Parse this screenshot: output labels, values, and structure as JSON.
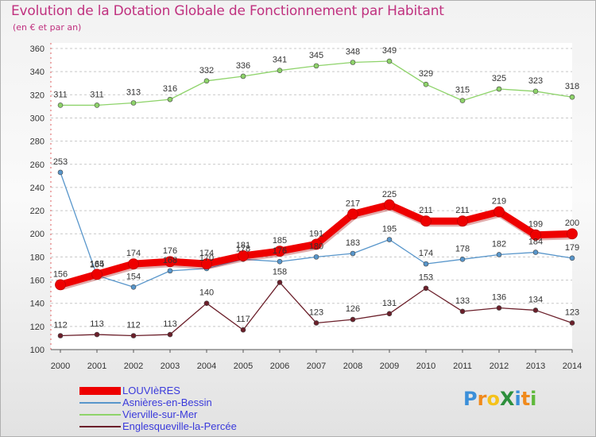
{
  "header": {
    "title": "Evolution de la Dotation Globale de Fonctionnement par Habitant",
    "subtitle": "(en € et par an)"
  },
  "logo": {
    "text": "ProXiti",
    "letter_colors": [
      "#3b8fd9",
      "#f08a1c",
      "#f5c21b",
      "#2d8f3c",
      "#3b8fd9",
      "#f08a1c",
      "#5fb93b"
    ]
  },
  "chart_data": {
    "type": "line",
    "x": [
      "2000",
      "2001",
      "2002",
      "2003",
      "2004",
      "2005",
      "2006",
      "2007",
      "2008",
      "2009",
      "2010",
      "2011",
      "2012",
      "2013",
      "2014"
    ],
    "y_ticks": [
      "100",
      "120",
      "140",
      "160",
      "180",
      "200",
      "220",
      "240",
      "260",
      "280",
      "300",
      "320",
      "340",
      "360"
    ],
    "ylim": [
      100,
      360
    ],
    "grid": "horizontal dashed",
    "legend": "bottom-left",
    "series": [
      {
        "name": "Englesqueville-la-Percée",
        "color": "#6b1f2a",
        "width": "thin",
        "values": [
          112,
          113,
          112,
          113,
          140,
          117,
          158,
          123,
          126,
          131,
          153,
          133,
          136,
          134,
          123
        ]
      },
      {
        "name": "Vierville-sur-Mer",
        "color": "#8ed36a",
        "width": "thin",
        "values": [
          311,
          311,
          313,
          316,
          332,
          336,
          341,
          345,
          348,
          349,
          329,
          315,
          325,
          323,
          318
        ]
      },
      {
        "name": "Asnières-en-Bessin",
        "color": "#5896cb",
        "width": "thin",
        "values": [
          253,
          164,
          154,
          168,
          170,
          178,
          176,
          180,
          183,
          195,
          174,
          178,
          182,
          184,
          179
        ]
      },
      {
        "name": "LOUVIèRES",
        "color": "#ee0000",
        "width": "thick",
        "values": [
          156,
          165,
          174,
          176,
          174,
          181,
          185,
          191,
          217,
          225,
          211,
          211,
          219,
          199,
          200
        ]
      }
    ]
  }
}
